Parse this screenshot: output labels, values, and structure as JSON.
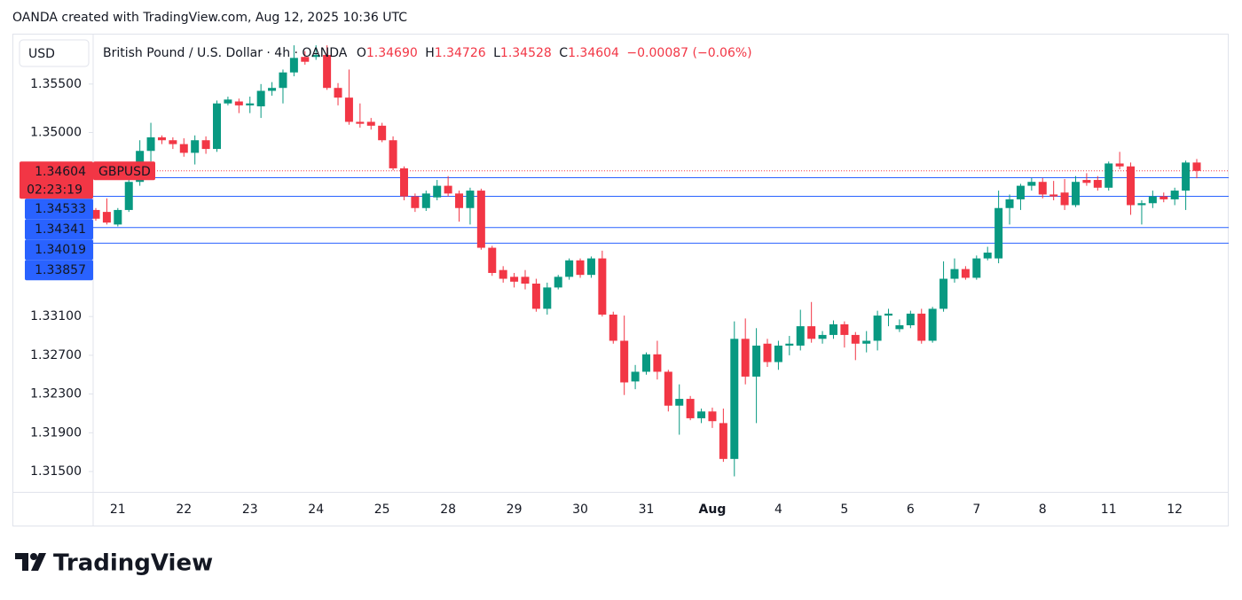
{
  "page_title": "OANDA created with TradingView.com, Aug 12, 2025 10:36 UTC",
  "brand": "TradingView",
  "chart_data": {
    "type": "candlestick",
    "currency": "USD",
    "title": "British Pound / U.S. Dollar · 4h · OANDA",
    "ohlc_legend": {
      "open_label": "O",
      "open": "1.34690",
      "high_label": "H",
      "high": "1.34726",
      "low_label": "L",
      "low": "1.34528",
      "close_label": "C",
      "close": "1.34604",
      "change": "−0.00087 (−0.06%)"
    },
    "up_color": "#089981",
    "down_color": "#f23645",
    "categories": [
      null,
      null,
      "21",
      null,
      null,
      null,
      null,
      null,
      "22",
      null,
      null,
      null,
      null,
      null,
      "23",
      null,
      null,
      null,
      null,
      null,
      "24",
      null,
      null,
      null,
      null,
      null,
      "25",
      null,
      null,
      null,
      null,
      null,
      "28",
      null,
      null,
      null,
      null,
      null,
      "29",
      null,
      null,
      null,
      null,
      null,
      "30",
      null,
      null,
      null,
      null,
      null,
      "31",
      null,
      null,
      null,
      null,
      null,
      "Aug",
      null,
      null,
      null,
      null,
      null,
      "4",
      null,
      null,
      null,
      null,
      null,
      "5",
      null,
      null,
      null,
      null,
      null,
      "6",
      null,
      null,
      null,
      null,
      null,
      "7",
      null,
      null,
      null,
      null,
      null,
      "8",
      null,
      null,
      null,
      null,
      null,
      "11",
      null,
      null,
      null,
      null,
      null,
      "12",
      null,
      null
    ],
    "open": [
      1.342,
      1.3418,
      1.3405,
      1.342,
      1.3449,
      1.3481,
      1.3495,
      1.3492,
      1.3488,
      1.3479,
      1.3492,
      1.3483,
      1.353,
      1.3532,
      1.3528,
      1.3527,
      1.3543,
      1.3546,
      1.3562,
      1.3578,
      1.3578,
      1.358,
      1.3546,
      1.3536,
      1.3511,
      1.3511,
      1.3507,
      1.3492,
      1.3463,
      1.3434,
      1.3422,
      1.3433,
      1.3445,
      1.3437,
      1.3422,
      1.344,
      1.3381,
      1.3358,
      1.3351,
      1.3351,
      1.3344,
      1.3318,
      1.334,
      1.3351,
      1.3368,
      1.3353,
      1.337,
      1.3312,
      1.3285,
      1.3243,
      1.3253,
      1.3271,
      1.3253,
      1.3218,
      1.3225,
      1.3205,
      1.3212,
      1.32,
      1.3163,
      1.3287,
      1.3248,
      1.3282,
      1.3263,
      1.328,
      1.328,
      1.33,
      1.3287,
      1.3291,
      1.3302,
      1.3291,
      1.3282,
      1.3285,
      1.3311,
      1.3297,
      1.3301,
      1.3313,
      1.3285,
      1.3318,
      1.3349,
      1.3359,
      1.335,
      1.337,
      1.337,
      1.3422,
      1.3431,
      1.3445,
      1.3449,
      1.3436,
      1.3438,
      1.3425,
      1.3451,
      1.3451,
      1.3443,
      1.3468,
      1.3465,
      1.3425,
      1.3427,
      1.3434,
      1.3431,
      1.344,
      1.3469
    ],
    "high": [
      1.3422,
      1.3432,
      1.3422,
      1.3452,
      1.3492,
      1.351,
      1.3497,
      1.3495,
      1.3494,
      1.3497,
      1.3496,
      1.3533,
      1.3537,
      1.3535,
      1.3537,
      1.355,
      1.3552,
      1.3565,
      1.359,
      1.3584,
      1.359,
      1.359,
      1.3551,
      1.3565,
      1.353,
      1.3515,
      1.351,
      1.3496,
      1.3465,
      1.3437,
      1.344,
      1.3451,
      1.3455,
      1.344,
      1.3443,
      1.3442,
      1.3383,
      1.3362,
      1.3355,
      1.3358,
      1.3349,
      1.3345,
      1.3353,
      1.337,
      1.337,
      1.3372,
      1.3378,
      1.3315,
      1.3311,
      1.326,
      1.3273,
      1.3285,
      1.3255,
      1.324,
      1.3228,
      1.3215,
      1.3216,
      1.3215,
      1.3305,
      1.3308,
      1.3298,
      1.3287,
      1.3285,
      1.329,
      1.3317,
      1.3325,
      1.3295,
      1.3306,
      1.3305,
      1.3294,
      1.3295,
      1.3316,
      1.3318,
      1.3307,
      1.3316,
      1.3318,
      1.332,
      1.3367,
      1.337,
      1.3362,
      1.3373,
      1.3382,
      1.344,
      1.3436,
      1.3447,
      1.3453,
      1.3453,
      1.345,
      1.3452,
      1.3455,
      1.3458,
      1.3455,
      1.347,
      1.348,
      1.3469,
      1.343,
      1.344,
      1.3438,
      1.3443,
      1.3471,
      1.34726
    ],
    "low": [
      1.3409,
      1.3405,
      1.3403,
      1.3418,
      1.3445,
      1.347,
      1.3488,
      1.3483,
      1.3475,
      1.3467,
      1.3478,
      1.348,
      1.3528,
      1.352,
      1.352,
      1.3515,
      1.3538,
      1.353,
      1.3558,
      1.357,
      1.3575,
      1.3544,
      1.3528,
      1.3508,
      1.3505,
      1.3503,
      1.349,
      1.3461,
      1.343,
      1.3418,
      1.3419,
      1.343,
      1.3434,
      1.3408,
      1.3405,
      1.3379,
      1.3352,
      1.3345,
      1.334,
      1.3338,
      1.3315,
      1.3312,
      1.3338,
      1.3348,
      1.335,
      1.335,
      1.331,
      1.3282,
      1.3229,
      1.3235,
      1.325,
      1.3245,
      1.3212,
      1.3188,
      1.3203,
      1.32,
      1.3195,
      1.316,
      1.3145,
      1.324,
      1.32,
      1.3258,
      1.3255,
      1.327,
      1.3275,
      1.3283,
      1.3282,
      1.3287,
      1.3278,
      1.3265,
      1.3273,
      1.3275,
      1.33,
      1.3294,
      1.3298,
      1.3282,
      1.3283,
      1.3315,
      1.3345,
      1.3348,
      1.3348,
      1.3368,
      1.3365,
      1.3405,
      1.342,
      1.344,
      1.3432,
      1.343,
      1.342,
      1.3423,
      1.3445,
      1.344,
      1.344,
      1.3462,
      1.3415,
      1.3405,
      1.3422,
      1.3428,
      1.3425,
      1.342,
      1.34528
    ],
    "close": [
      1.3411,
      1.3407,
      1.342,
      1.3449,
      1.3481,
      1.3495,
      1.3492,
      1.3488,
      1.3479,
      1.3492,
      1.3483,
      1.353,
      1.3534,
      1.3528,
      1.353,
      1.3543,
      1.3546,
      1.3562,
      1.3577,
      1.3573,
      1.358,
      1.3546,
      1.3536,
      1.3511,
      1.3509,
      1.3507,
      1.3492,
      1.3463,
      1.3434,
      1.3422,
      1.3437,
      1.3445,
      1.3437,
      1.3422,
      1.344,
      1.3381,
      1.3355,
      1.3349,
      1.3346,
      1.3344,
      1.3318,
      1.334,
      1.3351,
      1.3368,
      1.3353,
      1.337,
      1.3312,
      1.3285,
      1.3242,
      1.3253,
      1.3271,
      1.3253,
      1.3218,
      1.3225,
      1.3205,
      1.3212,
      1.3202,
      1.3163,
      1.3287,
      1.3248,
      1.328,
      1.3263,
      1.328,
      1.3282,
      1.33,
      1.3287,
      1.3291,
      1.3302,
      1.3291,
      1.3282,
      1.3285,
      1.3311,
      1.3313,
      1.3301,
      1.3313,
      1.3285,
      1.3318,
      1.3349,
      1.3359,
      1.335,
      1.337,
      1.3376,
      1.3422,
      1.3431,
      1.3445,
      1.3449,
      1.3436,
      1.3434,
      1.3425,
      1.3449,
      1.3448,
      1.3443,
      1.3468,
      1.3465,
      1.3425,
      1.3427,
      1.3434,
      1.3431,
      1.344,
      1.3469,
      1.34604
    ],
    "ylim": [
      1.3129,
      1.3602
    ],
    "yticks": [
      {
        "value": 1.355,
        "label": "1.35500"
      },
      {
        "value": 1.35,
        "label": "1.35000"
      },
      {
        "value": 1.331,
        "label": "1.33100"
      },
      {
        "value": 1.327,
        "label": "1.32700"
      },
      {
        "value": 1.323,
        "label": "1.32300"
      },
      {
        "value": 1.319,
        "label": "1.31900"
      },
      {
        "value": 1.315,
        "label": "1.31500"
      }
    ],
    "price_lines": [
      {
        "value": 1.34604,
        "label": "1.34604",
        "symbol": "GBPUSD",
        "countdown": "02:23:19",
        "color": "#f23645",
        "style": "dotted"
      },
      {
        "value": 1.34533,
        "label": "1.34533",
        "color": "#2962ff",
        "style": "solid"
      },
      {
        "value": 1.34341,
        "label": "1.34341",
        "color": "#2962ff",
        "style": "solid"
      },
      {
        "value": 1.34019,
        "label": "1.34019",
        "color": "#2962ff",
        "style": "solid"
      },
      {
        "value": 1.33857,
        "label": "1.33857",
        "color": "#2962ff",
        "style": "solid"
      }
    ]
  }
}
